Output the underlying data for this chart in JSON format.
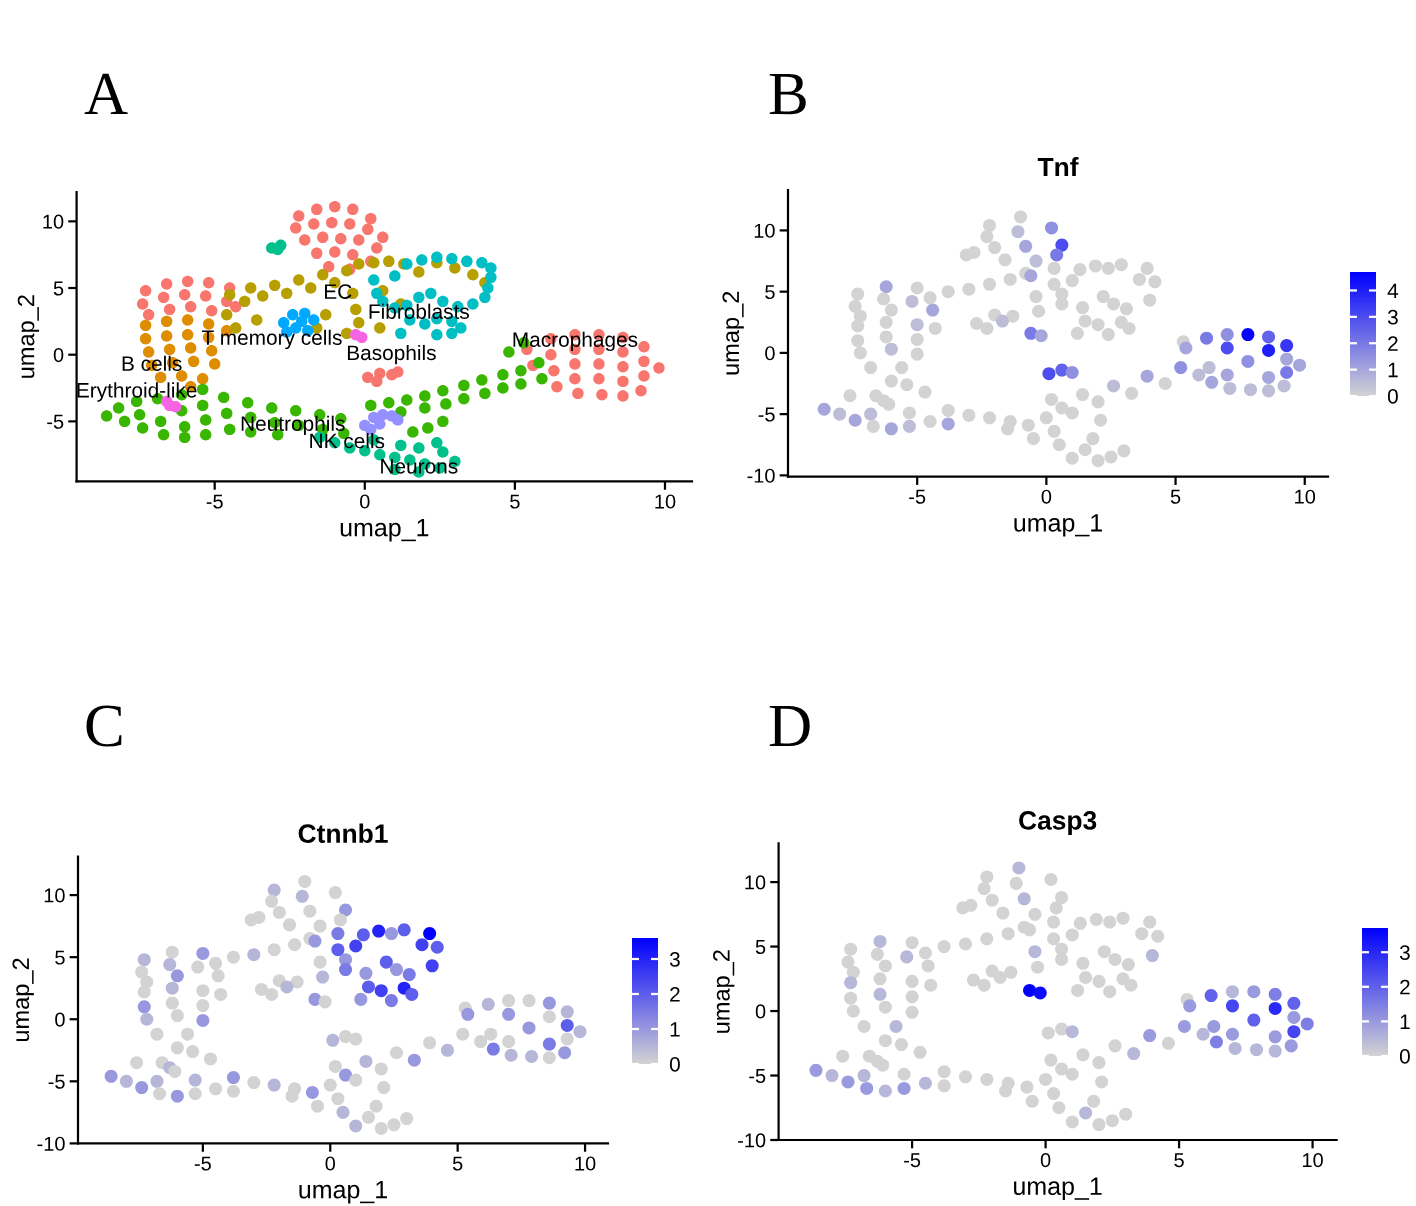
{
  "chart_data": [
    {
      "type": "scatter",
      "xlabel": "umap_1",
      "ylabel": "umap_2",
      "xlim": [
        -9.6,
        10.9
      ],
      "ylim": [
        -9.5,
        12.2
      ],
      "xticks": [
        -5,
        0,
        5,
        10
      ],
      "yticks": [
        -5,
        0,
        5,
        10
      ],
      "marker": "circle",
      "annotations": [
        "A",
        "T memory cells",
        "Basophils",
        {
          "text": "EC",
          "x": -0.9,
          "y": 4.6
        },
        {
          "text": "Fibroblasts",
          "x": 1.8,
          "y": 3.1
        },
        {
          "text": "Macrophages",
          "x": 7.0,
          "y": 1.0
        },
        {
          "text": "B cells",
          "x": -7.1,
          "y": -0.8
        },
        {
          "text": "Erythroid-like",
          "x": -7.6,
          "y": -2.8
        },
        {
          "text": "Neutrophils",
          "x": -2.4,
          "y": -5.3
        },
        {
          "text": "NK cells",
          "x": -0.6,
          "y": -6.6
        },
        {
          "text": "Neurons",
          "x": 1.8,
          "y": -8.5
        }
      ],
      "series": [
        {
          "color": "#f8766d",
          "x": [
            -2.2,
            -1.6,
            -1.0,
            -0.4,
            0.2,
            -2.3,
            -1.7,
            -1.1,
            -0.5,
            0.1,
            0.6,
            -2.0,
            -1.4,
            -0.8,
            -0.2,
            0.4,
            -1.6,
            -1.0,
            -0.4,
            0.2,
            -1.2,
            -0.5,
            -7.3,
            -6.6,
            -5.9,
            -5.2,
            -4.5,
            -7.4,
            -6.7,
            -6.0,
            -5.3,
            -4.6,
            -7.2,
            -6.5,
            -5.8,
            -5.1,
            -4.3,
            0.1,
            0.5,
            0.9,
            0.4,
            1.1,
            5.4,
            5.6,
            6.2,
            6.2,
            6.3,
            6.4,
            7.0,
            7.0,
            7.0,
            7.0,
            7.1,
            7.8,
            7.8,
            7.8,
            7.8,
            7.9,
            8.6,
            8.6,
            8.6,
            8.6,
            8.6,
            9.3,
            9.3,
            9.3,
            9.2,
            9.8
          ],
          "values": [
            10.4,
            10.9,
            11.1,
            10.9,
            10.2,
            9.5,
            9.8,
            9.9,
            9.8,
            9.4,
            8.8,
            8.6,
            8.8,
            8.7,
            8.6,
            8.0,
            7.6,
            7.7,
            7.5,
            7.0,
            6.6,
            6.4,
            4.8,
            5.3,
            5.5,
            5.4,
            5.0,
            3.8,
            4.3,
            4.5,
            4.4,
            4.0,
            3.0,
            3.4,
            3.6,
            3.3,
            3.6,
            -1.7,
            -1.4,
            -1.5,
            -2.0,
            -1.3,
            0.4,
            -0.8,
            1.2,
            0.0,
            -1.2,
            -2.4,
            1.5,
            0.4,
            -0.7,
            -1.8,
            -2.9,
            1.5,
            0.4,
            -0.7,
            -1.8,
            -3.0,
            1.3,
            0.2,
            -0.9,
            -2.0,
            -3.1,
            0.6,
            -0.5,
            -1.6,
            -2.7,
            -1.0
          ]
        },
        {
          "color": "#de8c00",
          "x": [
            -7.3,
            -6.6,
            -5.9,
            -5.2,
            -7.3,
            -6.6,
            -5.9,
            -5.2,
            -4.6,
            -7.2,
            -6.5,
            -5.8,
            -5.1,
            -7.1,
            -6.4,
            -5.7,
            -5.0,
            -6.8,
            -6.1,
            -5.4,
            -5.8
          ],
          "values": [
            2.2,
            2.5,
            2.6,
            2.3,
            1.2,
            1.4,
            1.5,
            1.3,
            1.8,
            0.2,
            0.4,
            0.5,
            0.3,
            -0.8,
            -0.6,
            -0.5,
            -0.7,
            -1.7,
            -1.6,
            -1.8,
            -2.4
          ]
        },
        {
          "color": "#b79f00",
          "x": [
            -4.5,
            -4.0,
            -3.8,
            -3.4,
            -3.0,
            -2.6,
            -2.2,
            -1.8,
            -1.4,
            -1.0,
            -0.6,
            -0.2,
            0.3,
            0.8,
            1.3,
            1.8,
            2.4,
            3.0,
            3.6,
            4.0,
            -0.4,
            -0.3,
            -0.2,
            -0.6,
            -1.3,
            -1.6,
            -4.6,
            -4.3,
            -3.6,
            0.6,
            1.2,
            0.5
          ],
          "values": [
            4.5,
            4.0,
            5.0,
            4.4,
            5.2,
            4.6,
            5.6,
            5.0,
            6.0,
            5.4,
            6.3,
            6.8,
            6.9,
            7.0,
            6.8,
            6.2,
            6.9,
            6.5,
            6.0,
            5.4,
            4.6,
            3.4,
            2.4,
            1.6,
            3.0,
            2.0,
            3.0,
            2.0,
            2.6,
            4.8,
            3.8,
            2.0
          ]
        },
        {
          "color": "#39b600",
          "x": [
            -8.6,
            -8.2,
            -8.0,
            -7.6,
            -7.5,
            -7.4,
            -6.9,
            -6.8,
            -6.7,
            -6.1,
            -6.1,
            -6.0,
            -6.0,
            -5.4,
            -5.4,
            -5.3,
            -5.3,
            -4.7,
            -4.6,
            -4.5,
            -3.9,
            -3.8,
            -3.8,
            -3.1,
            -3.0,
            -2.9,
            -2.3,
            -2.2,
            -1.5,
            -1.4,
            -0.8,
            -0.7,
            0.2,
            0.8,
            1.4,
            1.2,
            2.0,
            2.0,
            2.6,
            2.7,
            3.3,
            3.3,
            3.9,
            4.0,
            4.6,
            4.6,
            5.2,
            5.2,
            5.8,
            5.9,
            5.3,
            4.8,
            2.1,
            2.6,
            1.6
          ],
          "values": [
            -4.6,
            -4.0,
            -5.0,
            -3.5,
            -4.5,
            -5.5,
            -3.3,
            -5.0,
            -6.0,
            -3.0,
            -4.2,
            -5.4,
            -6.2,
            -2.6,
            -3.8,
            -4.9,
            -6.0,
            -3.2,
            -4.4,
            -5.6,
            -3.6,
            -4.7,
            -5.8,
            -4.0,
            -5.1,
            -6.0,
            -4.2,
            -5.3,
            -4.5,
            -5.6,
            -4.8,
            -5.9,
            -3.8,
            -3.6,
            -3.4,
            -4.3,
            -3.1,
            -4.0,
            -2.7,
            -3.7,
            -2.3,
            -3.3,
            -1.9,
            -2.9,
            -1.5,
            -2.5,
            -1.2,
            -2.2,
            -0.6,
            -1.8,
            0.9,
            0.2,
            -5.5,
            -5.0,
            -5.8
          ]
        },
        {
          "color": "#00c08b",
          "x": [
            -1.5,
            -1.0,
            -0.5,
            0.0,
            0.5,
            1.0,
            1.5,
            2.0,
            2.5,
            3.0,
            2.6,
            1.8,
            1.2,
            0.3,
            1.0,
            1.8,
            2.4,
            -3.1,
            -2.8,
            -2.9
          ],
          "values": [
            -6.2,
            -6.6,
            -7.0,
            -7.2,
            -7.5,
            -7.7,
            -7.9,
            -8.2,
            -8.5,
            -8.0,
            -7.3,
            -7.0,
            -6.8,
            -6.4,
            -8.6,
            -8.8,
            -6.6,
            8.0,
            8.2,
            7.9
          ]
        },
        {
          "color": "#00bfc4",
          "x": [
            0.3,
            0.4,
            0.6,
            1.0,
            1.4,
            1.9,
            2.4,
            2.9,
            3.4,
            3.9,
            4.2,
            4.2,
            4.1,
            4.0,
            3.6,
            3.1,
            2.6,
            2.2,
            1.8,
            1.4,
            1.0,
            2.0,
            2.4,
            2.9,
            3.2,
            2.9,
            2.4,
            1.2,
            1.5
          ],
          "values": [
            5.6,
            4.6,
            4.0,
            5.9,
            6.8,
            7.1,
            7.3,
            7.2,
            7.0,
            6.9,
            6.5,
            5.8,
            5.0,
            4.3,
            3.8,
            3.6,
            4.0,
            4.6,
            4.3,
            3.7,
            3.5,
            2.3,
            2.7,
            2.5,
            2.0,
            1.6,
            1.5,
            1.6,
            2.6
          ]
        },
        {
          "color": "#00a9ff",
          "x": [
            -2.7,
            -2.4,
            -2.0,
            -1.7,
            -2.3,
            -1.9,
            -2.6,
            -2.1
          ],
          "values": [
            2.4,
            3.0,
            3.1,
            2.6,
            2.0,
            1.8,
            1.7,
            2.5
          ]
        },
        {
          "color": "#9590ff",
          "x": [
            0.0,
            0.3,
            0.6,
            0.9,
            1.1,
            0.5,
            0.2
          ],
          "values": [
            -5.3,
            -4.7,
            -4.5,
            -4.6,
            -4.9,
            -5.2,
            -5.6
          ]
        },
        {
          "color": "#f564e3",
          "x": [
            -0.3,
            -0.1,
            -6.6,
            -6.3,
            -6.5
          ],
          "values": [
            1.5,
            1.3,
            -3.5,
            -3.9,
            -3.8
          ]
        }
      ]
    },
    {
      "type": "scatter",
      "title": "Tnf",
      "xlabel": "umap_1",
      "ylabel": "umap_2",
      "xlim": [
        -10.0,
        10.9
      ],
      "ylim": [
        -10.1,
        13.3
      ],
      "xticks": [
        -5,
        0,
        5,
        10
      ],
      "yticks": [
        -10,
        -5,
        0,
        5,
        10
      ],
      "marker": "circle",
      "clim": [
        0,
        4.7
      ],
      "cticks": [
        0,
        1,
        2,
        3,
        4
      ],
      "annotations": [
        "B"
      ],
      "x": [
        -2.2,
        -1.0,
        0.2,
        -2.3,
        -1.1,
        0.6,
        -2.0,
        -0.8,
        0.4,
        -1.6,
        -0.4,
        -0.8,
        -3.1,
        -2.8,
        -7.3,
        -6.2,
        -5.0,
        -7.4,
        -6.3,
        -5.2,
        -7.2,
        -6.0,
        -4.4,
        -7.3,
        -6.2,
        -5.0,
        -7.3,
        -6.2,
        -5.0,
        -7.2,
        -6.0,
        -5.0,
        -6.8,
        -5.6,
        -6.0,
        -4.5,
        -3.8,
        -3.0,
        -2.2,
        -1.4,
        -0.6,
        0.3,
        1.3,
        2.4,
        3.6,
        -0.4,
        -0.3,
        -0.6,
        -1.3,
        -4.3,
        0.6,
        0.3,
        0.6,
        1.0,
        1.9,
        2.9,
        3.9,
        4.2,
        4.0,
        3.1,
        2.2,
        1.4,
        2.0,
        2.9,
        3.2,
        2.4,
        1.2,
        1.5,
        2.6,
        -2.7,
        -2.0,
        -1.7,
        -2.3,
        -0.2,
        -6.6,
        -6.3,
        0.1,
        0.6,
        1.0,
        0.0,
        0.6,
        1.0,
        -1.5,
        -0.5,
        0.5,
        1.5,
        2.5,
        3.0,
        1.8,
        0.3,
        1.0,
        2.0,
        -8.6,
        -8.0,
        -7.6,
        -7.4,
        -6.8,
        -6.7,
        -6.1,
        -6.0,
        -5.4,
        -5.3,
        -5.3,
        -4.7,
        -4.5,
        -3.8,
        -3.8,
        -3.0,
        -2.2,
        -1.4,
        -0.7,
        0.2,
        1.4,
        2.0,
        2.6,
        3.3,
        3.9,
        4.6,
        5.2,
        5.9,
        5.3,
        2.1,
        5.4,
        6.2,
        6.3,
        6.4,
        7.0,
        7.0,
        7.1,
        7.8,
        7.8,
        7.9,
        8.6,
        8.6,
        8.6,
        8.6,
        9.3,
        9.3,
        9.3,
        9.2,
        9.8,
        7.0
      ],
      "values": [
        10.4,
        11.1,
        10.2,
        9.5,
        9.9,
        8.8,
        8.6,
        8.7,
        8.0,
        7.6,
        7.5,
        6.5,
        8.0,
        8.2,
        4.8,
        5.4,
        5.3,
        3.8,
        4.4,
        4.2,
        3.0,
        3.5,
        3.5,
        2.2,
        2.5,
        2.3,
        1.0,
        1.3,
        1.1,
        0.0,
        0.3,
        -0.1,
        -1.2,
        -1.2,
        -2.3,
        4.5,
        5.0,
        5.2,
        5.6,
        6.0,
        6.3,
        6.9,
        6.8,
        6.9,
        6.0,
        4.6,
        3.4,
        1.6,
        3.0,
        2.0,
        4.8,
        5.6,
        4.0,
        5.9,
        7.1,
        7.2,
        6.9,
        5.8,
        4.3,
        3.6,
        4.6,
        3.7,
        2.3,
        2.5,
        2.0,
        1.5,
        1.6,
        2.6,
        4.0,
        2.4,
        3.1,
        2.6,
        2.0,
        1.4,
        -3.5,
        -3.9,
        -1.7,
        -1.4,
        -1.6,
        -5.3,
        -4.5,
        -4.9,
        -6.2,
        -7.0,
        -7.5,
        -7.9,
        -8.5,
        -8.0,
        -7.0,
        -6.4,
        -8.6,
        -8.8,
        -4.6,
        -5.0,
        -3.5,
        -5.5,
        -5.0,
        -6.0,
        -4.2,
        -6.2,
        -2.6,
        -4.9,
        -6.0,
        -3.2,
        -5.6,
        -4.7,
        -5.8,
        -5.1,
        -5.3,
        -5.6,
        -5.9,
        -3.8,
        -3.4,
        -4.0,
        -2.7,
        -3.3,
        -1.9,
        -2.5,
        -1.2,
        -1.8,
        0.9,
        -5.5,
        0.4,
        1.2,
        -1.2,
        -2.4,
        0.4,
        -1.8,
        -2.9,
        1.5,
        -0.7,
        -3.0,
        1.3,
        0.2,
        -2.0,
        -3.1,
        0.6,
        -0.5,
        -1.6,
        -2.7,
        -1.0,
        1.5
      ],
      "cvalues": [
        0,
        0,
        1.5,
        0,
        0.5,
        3,
        0,
        1,
        2,
        0,
        0.5,
        0,
        0,
        0,
        0,
        1,
        0,
        0,
        0,
        0.5,
        0,
        0,
        1,
        0,
        0,
        0.5,
        0,
        0,
        0,
        0,
        0.5,
        0,
        0,
        0,
        0,
        0,
        0,
        0,
        0,
        0,
        1,
        0,
        0,
        0,
        0,
        0,
        0,
        2,
        0,
        0,
        0,
        0,
        0,
        0,
        0,
        0,
        0,
        0,
        0,
        0,
        0,
        0,
        0,
        0,
        0,
        0,
        0,
        0,
        0,
        0,
        0,
        0.5,
        0,
        1,
        0,
        0,
        3,
        2.5,
        1.5,
        0,
        0,
        0,
        0,
        0,
        0,
        0,
        0,
        0,
        0,
        0,
        0,
        0,
        1,
        0.5,
        0,
        1,
        0.5,
        0,
        0,
        1,
        0,
        0,
        0.5,
        0,
        0,
        0,
        1,
        0,
        0,
        0,
        0,
        0,
        0,
        0,
        0.5,
        0,
        1,
        0,
        1.5,
        0.5,
        0,
        0,
        1,
        2,
        0.5,
        1,
        3,
        1,
        0.5,
        4.6,
        1.5,
        0.5,
        2.5,
        4,
        1,
        0.5,
        3.5,
        1,
        2,
        0.5,
        1,
        1.5
      ]
    },
    {
      "type": "scatter",
      "title": "Ctnnb1",
      "xlabel": "umap_1",
      "ylabel": "umap_2",
      "xlim": [
        -9.9,
        10.9
      ],
      "ylim": [
        -10.0,
        13.1
      ],
      "xticks": [
        -5,
        0,
        5,
        10
      ],
      "yticks": [
        -10,
        -5,
        0,
        5,
        10
      ],
      "marker": "circle",
      "clim": [
        0,
        3.6
      ],
      "cticks": [
        0,
        1,
        2,
        3
      ],
      "annotations": [
        "C"
      ],
      "x": [
        -2.2,
        -1.0,
        0.2,
        -2.3,
        -1.1,
        0.6,
        -2.0,
        -0.8,
        0.4,
        -1.6,
        -0.4,
        -0.8,
        -3.1,
        -2.8,
        -7.3,
        -6.2,
        -5.0,
        -7.4,
        -6.3,
        -5.2,
        -7.2,
        -6.0,
        -4.4,
        -7.3,
        -6.2,
        -5.0,
        -7.3,
        -6.2,
        -5.0,
        -7.2,
        -6.0,
        -5.0,
        -6.8,
        -5.6,
        -6.0,
        -4.5,
        -3.8,
        -3.0,
        -2.2,
        -1.4,
        -0.6,
        0.3,
        1.3,
        2.4,
        3.6,
        -0.4,
        -0.3,
        -0.6,
        -1.3,
        -4.3,
        0.6,
        0.3,
        0.6,
        1.0,
        1.9,
        2.9,
        3.9,
        4.2,
        4.0,
        3.1,
        2.2,
        1.4,
        2.0,
        2.9,
        3.2,
        2.4,
        1.2,
        1.5,
        2.6,
        -2.7,
        -2.0,
        -1.7,
        -2.3,
        -0.2,
        -6.6,
        -6.3,
        0.1,
        0.6,
        1.0,
        0.0,
        0.6,
        1.0,
        -1.5,
        -0.5,
        0.5,
        1.5,
        2.5,
        3.0,
        1.8,
        0.3,
        1.0,
        2.0,
        -8.6,
        -8.0,
        -7.6,
        -7.4,
        -6.8,
        -6.7,
        -6.1,
        -6.0,
        -5.4,
        -5.3,
        -5.3,
        -4.7,
        -4.5,
        -3.8,
        -3.8,
        -3.0,
        -2.2,
        -1.4,
        -0.7,
        0.2,
        1.4,
        2.0,
        2.6,
        3.3,
        3.9,
        4.6,
        5.2,
        5.9,
        5.3,
        2.1,
        5.4,
        6.2,
        6.3,
        6.4,
        7.0,
        7.0,
        7.1,
        7.8,
        7.8,
        7.9,
        8.6,
        8.6,
        8.6,
        8.6,
        9.3,
        9.3,
        9.3,
        9.2,
        9.8,
        7.0
      ],
      "values": [
        10.4,
        11.1,
        10.2,
        9.5,
        9.9,
        8.8,
        8.6,
        8.7,
        8.0,
        7.6,
        7.5,
        6.5,
        8.0,
        8.2,
        4.8,
        5.4,
        5.3,
        3.8,
        4.4,
        4.2,
        3.0,
        3.5,
        3.5,
        2.2,
        2.5,
        2.3,
        1.0,
        1.3,
        1.1,
        0.0,
        0.3,
        -0.1,
        -1.2,
        -1.2,
        -2.3,
        4.5,
        5.0,
        5.2,
        5.6,
        6.0,
        6.3,
        6.9,
        6.8,
        6.9,
        6.0,
        4.6,
        3.4,
        1.6,
        3.0,
        2.0,
        4.8,
        5.6,
        4.0,
        5.9,
        7.1,
        7.2,
        6.9,
        5.8,
        4.3,
        3.6,
        4.6,
        3.7,
        2.3,
        2.5,
        2.0,
        1.5,
        1.6,
        2.6,
        4.0,
        2.4,
        3.1,
        2.6,
        2.0,
        1.4,
        -3.5,
        -3.9,
        -1.7,
        -1.4,
        -1.6,
        -5.3,
        -4.5,
        -4.9,
        -6.2,
        -7.0,
        -7.5,
        -7.9,
        -8.5,
        -8.0,
        -7.0,
        -6.4,
        -8.6,
        -8.8,
        -4.6,
        -5.0,
        -3.5,
        -5.5,
        -5.0,
        -6.0,
        -4.2,
        -6.2,
        -2.6,
        -4.9,
        -6.0,
        -3.2,
        -5.6,
        -4.7,
        -5.8,
        -5.1,
        -5.3,
        -5.6,
        -5.9,
        -3.8,
        -3.4,
        -4.0,
        -2.7,
        -3.3,
        -1.9,
        -2.5,
        -1.2,
        -1.8,
        0.9,
        -5.5,
        0.4,
        1.2,
        -1.2,
        -2.4,
        0.4,
        -1.8,
        -2.9,
        1.5,
        -0.7,
        -3.0,
        1.3,
        0.2,
        -2.0,
        -3.1,
        0.6,
        -0.5,
        -1.6,
        -2.7,
        -1.0,
        1.5
      ],
      "cvalues": [
        0.5,
        0,
        0,
        0,
        0.5,
        1,
        0,
        0,
        0,
        0,
        0,
        0,
        0,
        0,
        0.5,
        0,
        1,
        0,
        0.5,
        0,
        0,
        1,
        0,
        0,
        0.5,
        0,
        1,
        0,
        0,
        0.5,
        0,
        1,
        0,
        0,
        0,
        0,
        0,
        0.5,
        0,
        0,
        1,
        1.5,
        2,
        1,
        2.5,
        0,
        0.5,
        1,
        0,
        0,
        1,
        2,
        1.5,
        2.5,
        3,
        2,
        3.6,
        2,
        2.5,
        1.5,
        2,
        1,
        2.5,
        3,
        2,
        1.5,
        1,
        2,
        1,
        0,
        0,
        0.5,
        0,
        0,
        0,
        0.5,
        0.5,
        0,
        0,
        0,
        1,
        0,
        0,
        0,
        0.5,
        0,
        0,
        0,
        0,
        0,
        0.5,
        0,
        1,
        0.5,
        0,
        1,
        0.5,
        0,
        0,
        1,
        0,
        0.5,
        0,
        0,
        0,
        1,
        0,
        0,
        0.5,
        0,
        1,
        0,
        0.5,
        0,
        0,
        1,
        0,
        0.5,
        0,
        0,
        0,
        0,
        1,
        0.5,
        0,
        1.5,
        1,
        0,
        0.5,
        0,
        1,
        0.5,
        1,
        0,
        1.5,
        0,
        0.5,
        2,
        0,
        1,
        0.5,
        0
      ]
    },
    {
      "type": "scatter",
      "title": "Casp3",
      "xlabel": "umap_1",
      "ylabel": "umap_2",
      "xlim": [
        -10.0,
        10.9
      ],
      "ylim": [
        -10.0,
        13.0
      ],
      "xticks": [
        -5,
        0,
        5,
        10
      ],
      "yticks": [
        -10,
        -5,
        0,
        5,
        10
      ],
      "marker": "circle",
      "clim": [
        0,
        3.7
      ],
      "cticks": [
        0,
        1,
        2,
        3
      ],
      "annotations": [
        "D"
      ],
      "x": [
        -2.2,
        -1.0,
        0.2,
        -2.3,
        -1.1,
        0.6,
        -2.0,
        -0.8,
        0.4,
        -1.6,
        -0.4,
        -0.8,
        -3.1,
        -2.8,
        -7.3,
        -6.2,
        -5.0,
        -7.4,
        -6.3,
        -5.2,
        -7.2,
        -6.0,
        -4.4,
        -7.3,
        -6.2,
        -5.0,
        -7.3,
        -6.2,
        -5.0,
        -7.2,
        -6.0,
        -5.0,
        -6.8,
        -5.6,
        -6.0,
        -4.5,
        -3.8,
        -3.0,
        -2.2,
        -1.4,
        -0.6,
        0.3,
        1.3,
        2.4,
        3.6,
        -0.4,
        -0.3,
        -0.6,
        -1.3,
        -4.3,
        0.6,
        0.3,
        0.6,
        1.0,
        1.9,
        2.9,
        3.9,
        4.2,
        4.0,
        3.1,
        2.2,
        1.4,
        2.0,
        2.9,
        3.2,
        2.4,
        1.2,
        1.5,
        2.6,
        -2.7,
        -2.0,
        -1.7,
        -2.3,
        -0.2,
        -6.6,
        -6.3,
        0.1,
        0.6,
        1.0,
        0.0,
        0.6,
        1.0,
        -1.5,
        -0.5,
        0.5,
        1.5,
        2.5,
        3.0,
        1.8,
        0.3,
        1.0,
        2.0,
        -8.6,
        -8.0,
        -7.6,
        -7.4,
        -6.8,
        -6.7,
        -6.1,
        -6.0,
        -5.4,
        -5.3,
        -5.3,
        -4.7,
        -4.5,
        -3.8,
        -3.8,
        -3.0,
        -2.2,
        -1.4,
        -0.7,
        0.2,
        1.4,
        2.0,
        2.6,
        3.3,
        3.9,
        4.6,
        5.2,
        5.9,
        5.3,
        2.1,
        5.4,
        6.2,
        6.3,
        6.4,
        7.0,
        7.0,
        7.1,
        7.8,
        7.8,
        7.9,
        8.6,
        8.6,
        8.6,
        8.6,
        9.3,
        9.3,
        9.3,
        9.2,
        9.8,
        7.0
      ],
      "values": [
        10.4,
        11.1,
        10.2,
        9.5,
        9.9,
        8.8,
        8.6,
        8.7,
        8.0,
        7.6,
        7.5,
        6.5,
        8.0,
        8.2,
        4.8,
        5.4,
        5.3,
        3.8,
        4.4,
        4.2,
        3.0,
        3.5,
        3.5,
        2.2,
        2.5,
        2.3,
        1.0,
        1.3,
        1.1,
        0.0,
        0.3,
        -0.1,
        -1.2,
        -1.2,
        -2.3,
        4.5,
        5.0,
        5.2,
        5.6,
        6.0,
        6.3,
        6.9,
        6.8,
        6.9,
        6.0,
        4.6,
        3.4,
        1.6,
        3.0,
        2.0,
        4.8,
        5.6,
        4.0,
        5.9,
        7.1,
        7.2,
        6.9,
        5.8,
        4.3,
        3.6,
        4.6,
        3.7,
        2.3,
        2.5,
        2.0,
        1.5,
        1.6,
        2.6,
        4.0,
        2.4,
        3.1,
        2.6,
        2.0,
        1.4,
        -3.5,
        -3.9,
        -1.7,
        -1.4,
        -1.6,
        -5.3,
        -4.5,
        -4.9,
        -6.2,
        -7.0,
        -7.5,
        -7.9,
        -8.5,
        -8.0,
        -7.0,
        -6.4,
        -8.6,
        -8.8,
        -4.6,
        -5.0,
        -3.5,
        -5.5,
        -5.0,
        -6.0,
        -4.2,
        -6.2,
        -2.6,
        -4.9,
        -6.0,
        -3.2,
        -5.6,
        -4.7,
        -5.8,
        -5.1,
        -5.3,
        -5.6,
        -5.9,
        -3.8,
        -3.4,
        -4.0,
        -2.7,
        -3.3,
        -1.9,
        -2.5,
        -1.2,
        -1.8,
        0.9,
        -5.5,
        0.4,
        1.2,
        -1.2,
        -2.4,
        0.4,
        -1.8,
        -2.9,
        1.5,
        -0.7,
        -3.0,
        1.3,
        0.2,
        -2.0,
        -3.1,
        0.6,
        -0.5,
        -1.6,
        -2.7,
        -1.0,
        1.5
      ],
      "cvalues": [
        0,
        0.5,
        0,
        0,
        0,
        0,
        0,
        0.5,
        0,
        0,
        0,
        0,
        0,
        0,
        0,
        0.5,
        0,
        0,
        0,
        0.5,
        0,
        0,
        0,
        0.5,
        0,
        0,
        0,
        0.5,
        0,
        0,
        0,
        0,
        0,
        0.5,
        0,
        0,
        0,
        0,
        0,
        0,
        0,
        0,
        0,
        0,
        0,
        0.5,
        0,
        3.7,
        0,
        0,
        0,
        0,
        0,
        0,
        0,
        0,
        0,
        0,
        0.5,
        0,
        0,
        0,
        0,
        0,
        0,
        0,
        0,
        0,
        0,
        0,
        0,
        0,
        0,
        3.5,
        0,
        0,
        0,
        0,
        0.5,
        0,
        0,
        0,
        0,
        0,
        0,
        0.5,
        0,
        0,
        0,
        0,
        0,
        0,
        1,
        0.5,
        0,
        1,
        0.5,
        1,
        0,
        0.5,
        0,
        0,
        1,
        0,
        0.5,
        0,
        0,
        0,
        0,
        0,
        0,
        0,
        0,
        0,
        0,
        0.5,
        1,
        0,
        1,
        0.5,
        0,
        0,
        1,
        2,
        1,
        1.5,
        2.5,
        1,
        0.5,
        1,
        2,
        0.5,
        1.5,
        3,
        1,
        0.5,
        2,
        1,
        2.5,
        1,
        1.5,
        0.5
      ]
    }
  ]
}
